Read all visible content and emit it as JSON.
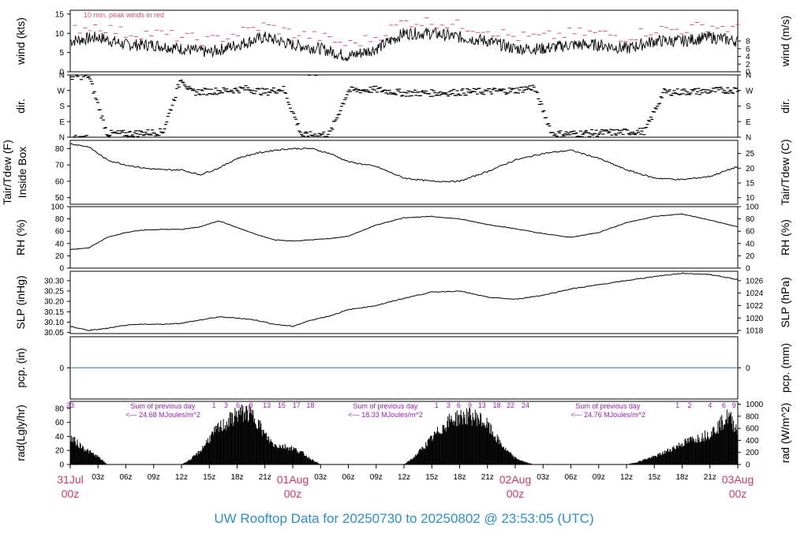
{
  "title": "UW Rooftop Data for 20250730  to  20250802 @ 23:53:05  (UTC)",
  "chart_data": {
    "type": "line",
    "x_axis": {
      "tick_labels": [
        "03z",
        "06z",
        "09z",
        "12z",
        "15z",
        "18z",
        "21z",
        "03z",
        "06z",
        "09z",
        "12z",
        "15z",
        "18z",
        "21z",
        "03z",
        "06z",
        "09z",
        "12z",
        "15z",
        "18z",
        "21z"
      ],
      "day_labels": [
        {
          "date": "31Jul",
          "time": "00z"
        },
        {
          "date": "01Aug",
          "time": "00z"
        },
        {
          "date": "02Aug",
          "time": "00z"
        },
        {
          "date": "03Aug",
          "time": "00z"
        }
      ],
      "range_hours": [
        0,
        72
      ]
    },
    "panels": [
      {
        "id": "wind",
        "ylabel_left": "wind (kts)",
        "ylabel_right": "wind (m/s)",
        "ylim": [
          0,
          16
        ],
        "left_ticks": [
          "0",
          "5",
          "10",
          "15"
        ],
        "left_tick_values": [
          0,
          5,
          10,
          15
        ],
        "right_ticks": [
          "0",
          "2",
          "4",
          "6",
          "8"
        ],
        "right_tick_values": [
          0,
          2,
          4,
          6,
          8
        ],
        "annotation": "10 min. peak winds in red",
        "series": [
          {
            "name": "wind",
            "color": "#000000",
            "x": [
              0,
              3,
              6,
              9,
              12,
              15,
              18,
              21,
              24,
              27,
              30,
              33,
              36,
              39,
              42,
              45,
              48,
              51,
              54,
              57,
              60,
              63,
              66,
              69,
              72
            ],
            "values": [
              8,
              9,
              7,
              7,
              6,
              5,
              7,
              9,
              7,
              6,
              4,
              6,
              10,
              10,
              9,
              8,
              6,
              6,
              7,
              7,
              6,
              8,
              8,
              9,
              8
            ]
          },
          {
            "name": "peak",
            "color": "#e05070",
            "x": [
              0,
              3,
              6,
              9,
              12,
              15,
              18,
              21,
              24,
              27,
              30,
              33,
              36,
              39,
              42,
              45,
              48,
              51,
              54,
              57,
              60,
              63,
              66,
              69,
              72
            ],
            "values": [
              11,
              12,
              10,
              10,
              9,
              8,
              10,
              12,
              10,
              9,
              7,
              9,
              13,
              13,
              12,
              11,
              9,
              9,
              10,
              10,
              9,
              11,
              11,
              12,
              11
            ]
          }
        ]
      },
      {
        "id": "dir",
        "ylabel_left": "dir.",
        "ylabel_right": "dir.",
        "left_ticks": [
          "N",
          "E",
          "S",
          "W",
          "N"
        ],
        "right_ticks": [
          "N",
          "E",
          "S",
          "W",
          "N"
        ],
        "ylim": [
          0,
          360
        ],
        "series": [
          {
            "name": "direction",
            "color": "#000000",
            "x": [
              0,
              2,
              4,
              6,
              8,
              10,
              12,
              13,
              15,
              17,
              19,
              21,
              23,
              25,
              27,
              28,
              30,
              33,
              36,
              39,
              42,
              45,
              48,
              50,
              52,
              54,
              57,
              60,
              62,
              64,
              66,
              68,
              70,
              72
            ],
            "values": [
              350,
              355,
              20,
              20,
              25,
              30,
              345,
              260,
              265,
              270,
              280,
              260,
              280,
              10,
              15,
              20,
              270,
              275,
              255,
              255,
              260,
              265,
              270,
              290,
              20,
              20,
              25,
              30,
              35,
              260,
              262,
              265,
              270,
              275
            ]
          }
        ]
      },
      {
        "id": "temp",
        "ylabel_left": "Tair/Tdew (F)",
        "ylabel_left_2": "Inside Box",
        "ylabel_right": "Tair/Tdew (C)",
        "ylim": [
          46,
          85
        ],
        "left_ticks": [
          "50",
          "60",
          "70",
          "80"
        ],
        "left_tick_values": [
          50,
          60,
          70,
          80
        ],
        "right_ticks": [
          "10",
          "15",
          "20",
          "25"
        ],
        "right_tick_values": [
          50,
          59,
          68,
          77
        ],
        "series": [
          {
            "name": "Tair",
            "color": "#000000",
            "x": [
              0,
              2,
              4,
              6,
              8,
              10,
              12,
              14,
              16,
              18,
              20,
              22,
              24,
              26,
              28,
              30,
              33,
              36,
              39,
              42,
              45,
              48,
              51,
              54,
              57,
              60,
              63,
              66,
              69,
              72
            ],
            "values": [
              83,
              81,
              73,
              70,
              68,
              67,
              67,
              64,
              68,
              74,
              77,
              79,
              80,
              80,
              77,
              72,
              69,
              62,
              60,
              60,
              66,
              73,
              77,
              79,
              74,
              67,
              62,
              61,
              63,
              69
            ]
          }
        ]
      },
      {
        "id": "rh",
        "ylabel_left": "RH (%)",
        "ylabel_right": "RH (%)",
        "ylim": [
          0,
          100
        ],
        "left_ticks": [
          "0",
          "20",
          "40",
          "60",
          "80",
          "100"
        ],
        "left_tick_values": [
          0,
          20,
          40,
          60,
          80,
          100
        ],
        "right_ticks": [
          "0",
          "20",
          "40",
          "60",
          "80",
          "100"
        ],
        "right_tick_values": [
          0,
          20,
          40,
          60,
          80,
          100
        ],
        "series": [
          {
            "name": "RH",
            "color": "#000000",
            "x": [
              0,
              2,
              4,
              6,
              8,
              10,
              12,
              14,
              16,
              18,
              20,
              22,
              24,
              26,
              28,
              30,
              33,
              36,
              39,
              42,
              45,
              48,
              51,
              54,
              57,
              60,
              63,
              66,
              69,
              72
            ],
            "values": [
              30,
              33,
              50,
              58,
              62,
              63,
              63,
              67,
              77,
              66,
              55,
              46,
              44,
              46,
              48,
              52,
              70,
              82,
              84,
              80,
              71,
              64,
              56,
              50,
              58,
              74,
              84,
              88,
              78,
              67
            ]
          }
        ]
      },
      {
        "id": "slp",
        "ylabel_left": "SLP (inHg)",
        "ylabel_right": "SLP (hPa)",
        "ylim": [
          30.045,
          30.345
        ],
        "left_ticks": [
          "30.05",
          "30.10",
          "30.15",
          "30.20",
          "30.25",
          "30.30"
        ],
        "left_tick_values": [
          30.05,
          30.1,
          30.15,
          30.2,
          30.25,
          30.3
        ],
        "right_ticks": [
          "1018",
          "1020",
          "1022",
          "1024",
          "1026"
        ],
        "right_tick_values": [
          30.06,
          30.12,
          30.18,
          30.24,
          30.3
        ],
        "series": [
          {
            "name": "SLP",
            "color": "#000000",
            "x": [
              0,
              2,
              4,
              6,
              8,
              10,
              12,
              14,
              16,
              18,
              20,
              22,
              24,
              26,
              28,
              30,
              33,
              36,
              39,
              42,
              45,
              48,
              51,
              54,
              57,
              60,
              63,
              66,
              69,
              72
            ],
            "values": [
              30.08,
              30.06,
              30.07,
              30.085,
              30.09,
              30.09,
              30.095,
              30.11,
              30.125,
              30.12,
              30.11,
              30.09,
              30.08,
              30.11,
              30.13,
              30.16,
              30.18,
              30.215,
              30.245,
              30.25,
              30.22,
              30.21,
              30.23,
              30.26,
              30.28,
              30.3,
              30.32,
              30.335,
              30.33,
              30.305
            ]
          }
        ]
      },
      {
        "id": "pcp",
        "ylabel_left": "pcp. (in)",
        "ylabel_right": "pcp. (mm)",
        "ylim": [
          -1,
          1
        ],
        "left_ticks": [
          "0"
        ],
        "left_tick_values": [
          0
        ],
        "right_ticks": [
          "0"
        ],
        "right_tick_values": [
          0
        ],
        "series": [
          {
            "name": "precip",
            "color": "#4a80c8",
            "x": [
              0,
              72
            ],
            "values": [
              0,
              0
            ]
          }
        ]
      },
      {
        "id": "rad",
        "ylabel_left": "rad(Lgly/hr)",
        "ylabel_right": "rad (W/m^2)",
        "ylim": [
          0,
          90
        ],
        "left_ticks": [
          "0",
          "20",
          "40",
          "60",
          "80"
        ],
        "left_tick_values": [
          0,
          20,
          40,
          60,
          80
        ],
        "right_ticks": [
          "0",
          "200",
          "400",
          "600",
          "800",
          "1000"
        ],
        "right_tick_values": [
          0,
          17.2,
          34.4,
          51.6,
          68.8,
          86
        ],
        "series": [
          {
            "name": "radiation",
            "color": "#000000",
            "x": [
              0,
              1,
              2,
              3,
              4,
              12,
              13,
              14,
              15,
              16,
              17,
              18,
              19,
              20,
              21,
              22,
              23,
              24,
              25,
              26,
              27,
              36,
              37,
              38,
              39,
              40,
              41,
              42,
              43,
              44,
              45,
              46,
              47,
              48,
              49,
              50,
              60,
              61,
              62,
              63,
              64,
              65,
              66,
              67,
              68,
              69,
              70,
              71,
              72
            ],
            "values": [
              42,
              30,
              20,
              12,
              0,
              0,
              8,
              20,
              40,
              56,
              65,
              78,
              80,
              72,
              45,
              30,
              28,
              25,
              18,
              8,
              0,
              0,
              10,
              25,
              40,
              55,
              68,
              73,
              74,
              72,
              60,
              40,
              22,
              10,
              4,
              0,
              0,
              3,
              8,
              12,
              18,
              25,
              32,
              38,
              42,
              48,
              60,
              75,
              52
            ]
          }
        ],
        "hour_markers": [
          {
            "x_hour": 0,
            "label": "23"
          },
          {
            "x_hour": 15.5,
            "label": "1"
          },
          {
            "x_hour": 16.8,
            "label": "3"
          },
          {
            "x_hour": 18.1,
            "label": "6"
          },
          {
            "x_hour": 19.5,
            "label": "9"
          },
          {
            "x_hour": 21.2,
            "label": "13"
          },
          {
            "x_hour": 22.8,
            "label": "15"
          },
          {
            "x_hour": 24.4,
            "label": "17"
          },
          {
            "x_hour": 25.9,
            "label": "18"
          },
          {
            "x_hour": 39.5,
            "label": "1"
          },
          {
            "x_hour": 40.8,
            "label": "3"
          },
          {
            "x_hour": 41.9,
            "label": "6"
          },
          {
            "x_hour": 43.1,
            "label": "9"
          },
          {
            "x_hour": 44.4,
            "label": "13"
          },
          {
            "x_hour": 46.0,
            "label": "18"
          },
          {
            "x_hour": 47.5,
            "label": "22"
          },
          {
            "x_hour": 49.1,
            "label": "24"
          },
          {
            "x_hour": 65.5,
            "label": "1"
          },
          {
            "x_hour": 66.8,
            "label": "2"
          },
          {
            "x_hour": 69.0,
            "label": "4"
          },
          {
            "x_hour": 70.5,
            "label": "6"
          },
          {
            "x_hour": 71.6,
            "label": "9"
          }
        ],
        "annotations": [
          {
            "x_hour": 6.5,
            "line1": "Sum of previous day",
            "line2": "<--- 24.68 MJoules/m^2"
          },
          {
            "x_hour": 30.5,
            "line1": "Sum of previous day",
            "line2": "<--- 18.33 MJoules/m^2"
          },
          {
            "x_hour": 54.5,
            "line1": "Sum of previous day",
            "line2": "<--- 24.76 MJoules/m^2"
          }
        ]
      }
    ]
  }
}
